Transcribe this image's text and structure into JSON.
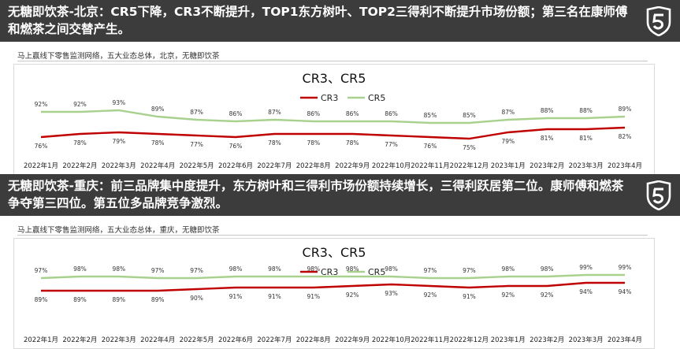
{
  "panels": [
    {
      "header": "无糖即饮茶-北京：CR5下降，CR3不断提升，TOP1东方树叶、TOP2三得利不断提升市场份额；第三名在康师傅和燃茶之间交替产生。",
      "source": "马上赢线下零售监测网络，五大业态总体，北京，无糖即饮茶"
    },
    {
      "header": "无糖即饮茶-重庆：前三品牌集中度提升，东方树叶和三得利市场份额持续增长，三得利跃居第二位。康师傅和燃茶争夺第三四位。第五位多品牌竞争激烈。",
      "source": "马上赢线下零售监测网络，五大业态总体，重庆，无糖即饮茶"
    }
  ],
  "chart_data": [
    {
      "type": "line",
      "title": "CR3、CR5",
      "categories": [
        "2022年1月",
        "2022年2月",
        "2022年3月",
        "2022年4月",
        "2022年5月",
        "2022年6月",
        "2022年7月",
        "2022年8月",
        "2022年9月",
        "2022年10月",
        "2022年11月",
        "2022年12月",
        "2023年1月",
        "2023年2月",
        "2023年3月",
        "2023年4月"
      ],
      "series": [
        {
          "name": "CR3",
          "color": "#c00000",
          "values": [
            76,
            78,
            79,
            78,
            77,
            76,
            78,
            78,
            78,
            77,
            76,
            75,
            79,
            81,
            81,
            82
          ],
          "labels": [
            "76%",
            "78%",
            "79%",
            "78%",
            "77%",
            "76%",
            "78%",
            "78%",
            "78%",
            "77%",
            "76%",
            "75%",
            "79%",
            "81%",
            "81%",
            "82%"
          ]
        },
        {
          "name": "CR5",
          "color": "#a9d18e",
          "values": [
            92,
            92,
            93,
            89,
            87,
            86,
            87,
            86,
            86,
            86,
            85,
            85,
            87,
            88,
            88,
            89
          ],
          "labels": [
            "92%",
            "92%",
            "93%",
            "89%",
            "87%",
            "86%",
            "87%",
            "86%",
            "86%",
            "86%",
            "85%",
            "85%",
            "87%",
            "88%",
            "88%",
            "89%"
          ]
        }
      ],
      "ylim": [
        60,
        105
      ],
      "legend": "top-center"
    },
    {
      "type": "line",
      "title": "CR3、CR5",
      "categories": [
        "2022年1月",
        "2022年2月",
        "2022年3月",
        "2022年4月",
        "2022年5月",
        "2022年6月",
        "2022年7月",
        "2022年8月",
        "2022年9月",
        "2022年10月",
        "2022年11月",
        "2022年12月",
        "2023年1月",
        "2023年2月",
        "2023年3月",
        "2023年4月"
      ],
      "series": [
        {
          "name": "CR3",
          "color": "#c00000",
          "values": [
            89,
            89,
            89,
            89,
            90,
            91,
            91,
            91,
            92,
            93,
            92,
            91,
            92,
            92,
            94,
            94
          ],
          "labels": [
            "89%",
            "89%",
            "89%",
            "89%",
            "90%",
            "91%",
            "91%",
            "91%",
            "92%",
            "93%",
            "92%",
            "91%",
            "92%",
            "92%",
            "94%",
            "94%"
          ]
        },
        {
          "name": "CR5",
          "color": "#a9d18e",
          "values": [
            97,
            98,
            98,
            97,
            97,
            98,
            98,
            98,
            98,
            98,
            97,
            97,
            98,
            98,
            99,
            99
          ],
          "labels": [
            "97%",
            "98%",
            "98%",
            "97%",
            "97%",
            "98%",
            "98%",
            "98%",
            "98%",
            "98%",
            "97%",
            "97%",
            "98%",
            "98%",
            "99%",
            "99%"
          ]
        }
      ],
      "ylim": [
        60,
        105
      ],
      "legend": "top-center"
    }
  ]
}
